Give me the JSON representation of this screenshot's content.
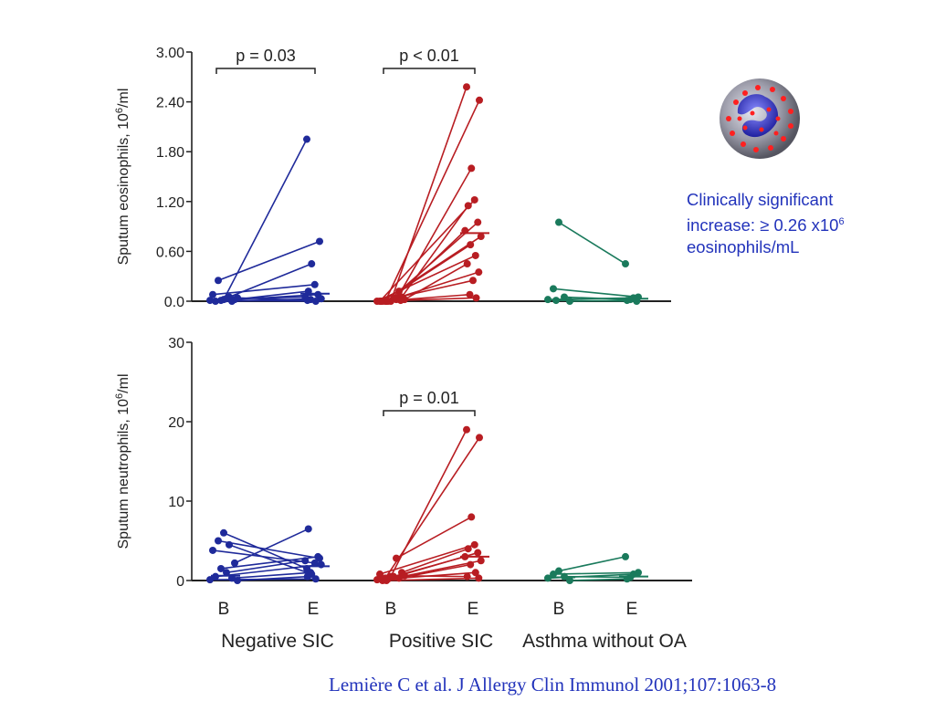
{
  "annotation": {
    "line1": "Clinically significant",
    "line2_prefix": "increase: ≥ 0.26 x10",
    "line2_sup": "6",
    "line3": "eosinophils/mL"
  },
  "citation": "Lemière C et al. J Allergy Clin Immunol 2001;107:1063-8",
  "colors": {
    "negative": "#1f2a9a",
    "positive": "#b81d22",
    "asthma": "#1a7a5c",
    "axis": "#222222"
  },
  "logo_icon": "eosinophil-cell-icon",
  "chart_data": [
    {
      "type": "scatter",
      "panel": "top",
      "ylabel_main": "Sputum eosinophils, 10",
      "ylabel_sup": "6",
      "ylabel_tail": "/ml",
      "ylim": [
        0,
        3.0
      ],
      "yticks": [
        0,
        0.6,
        1.2,
        1.8,
        2.4,
        3.0
      ],
      "ytick_labels": [
        "0.0",
        "0.60",
        "1.20",
        "1.80",
        "2.40",
        "3.00"
      ],
      "annotations": [
        {
          "group": "Negative SIC",
          "text": "p = 0.03"
        },
        {
          "group": "Positive SIC",
          "text": "p < 0.01"
        }
      ],
      "groups": [
        {
          "name": "Negative SIC",
          "color": "#1f2a9a",
          "median_E": 0.09,
          "pairs": [
            [
              0.02,
              1.95
            ],
            [
              0.25,
              0.72
            ],
            [
              0.05,
              0.45
            ],
            [
              0.08,
              0.2
            ],
            [
              0.02,
              0.12
            ],
            [
              0.01,
              0.08
            ],
            [
              0.03,
              0.05
            ],
            [
              0.0,
              0.03
            ],
            [
              0.0,
              0.02
            ],
            [
              0.01,
              0.0
            ],
            [
              0.04,
              0.01
            ]
          ]
        },
        {
          "name": "Positive SIC",
          "color": "#b81d22",
          "median_E": 0.82,
          "pairs": [
            [
              0.0,
              2.58
            ],
            [
              0.0,
              2.42
            ],
            [
              0.02,
              1.6
            ],
            [
              0.0,
              1.22
            ],
            [
              0.05,
              1.15
            ],
            [
              0.0,
              0.95
            ],
            [
              0.03,
              0.85
            ],
            [
              0.0,
              0.78
            ],
            [
              0.12,
              0.68
            ],
            [
              0.0,
              0.55
            ],
            [
              0.02,
              0.45
            ],
            [
              0.0,
              0.35
            ],
            [
              0.04,
              0.25
            ],
            [
              0.0,
              0.08
            ],
            [
              0.01,
              0.04
            ]
          ]
        },
        {
          "name": "Asthma without OA",
          "color": "#1a7a5c",
          "median_E": 0.03,
          "pairs": [
            [
              0.95,
              0.45
            ],
            [
              0.15,
              0.05
            ],
            [
              0.05,
              0.02
            ],
            [
              0.02,
              0.04
            ],
            [
              0.0,
              0.01
            ],
            [
              0.01,
              0.0
            ]
          ]
        }
      ]
    },
    {
      "type": "scatter",
      "panel": "bottom",
      "ylabel_main": "Sputum neutrophils, 10",
      "ylabel_sup": "6",
      "ylabel_tail": "/ml",
      "ylim": [
        0,
        30
      ],
      "yticks": [
        0,
        10,
        20,
        30
      ],
      "ytick_labels": [
        "0",
        "10",
        "20",
        "30"
      ],
      "annotations": [
        {
          "group": "Positive SIC",
          "text": "p = 0.01"
        }
      ],
      "groups": [
        {
          "name": "Negative SIC",
          "color": "#1f2a9a",
          "median_E": 1.8,
          "median_B": 0.6,
          "pairs": [
            [
              6.0,
              1.5
            ],
            [
              5.0,
              2.8
            ],
            [
              4.5,
              0.8
            ],
            [
              3.8,
              2.2
            ],
            [
              2.2,
              6.5
            ],
            [
              1.5,
              3.0
            ],
            [
              1.0,
              2.5
            ],
            [
              0.5,
              2.0
            ],
            [
              0.3,
              1.0
            ],
            [
              0.1,
              0.2
            ],
            [
              0.0,
              0.5
            ]
          ]
        },
        {
          "name": "Positive SIC",
          "color": "#b81d22",
          "median_E": 3.0,
          "median_B": 0.4,
          "pairs": [
            [
              0.5,
              19.0
            ],
            [
              0.3,
              18.0
            ],
            [
              2.8,
              8.0
            ],
            [
              0.8,
              4.5
            ],
            [
              1.0,
              4.0
            ],
            [
              0.2,
              3.5
            ],
            [
              0.5,
              3.0
            ],
            [
              0.0,
              2.5
            ],
            [
              0.3,
              2.0
            ],
            [
              0.1,
              1.0
            ],
            [
              0.6,
              0.5
            ],
            [
              0.0,
              0.3
            ]
          ]
        },
        {
          "name": "Asthma without OA",
          "color": "#1a7a5c",
          "median_E": 0.5,
          "median_B": 0.4,
          "pairs": [
            [
              1.2,
              3.0
            ],
            [
              0.8,
              1.0
            ],
            [
              0.5,
              0.4
            ],
            [
              0.3,
              0.8
            ],
            [
              0.0,
              0.2
            ]
          ]
        }
      ]
    }
  ],
  "x_labels": {
    "groups": [
      {
        "name": "Negative SIC",
        "b": "B",
        "e": "E"
      },
      {
        "name": "Positive SIC",
        "b": "B",
        "e": "E"
      },
      {
        "name": "Asthma without OA",
        "b": "B",
        "e": "E"
      }
    ]
  }
}
